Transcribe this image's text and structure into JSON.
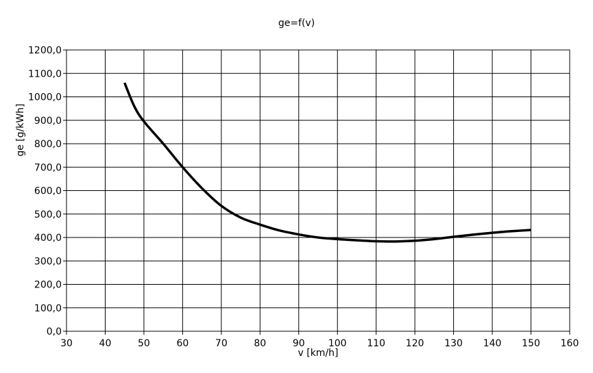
{
  "chart_data": {
    "type": "line",
    "title": "ge=f(v)",
    "xlabel": "v [km/h]",
    "ylabel": "ge [g/kWh]",
    "xlim": [
      30,
      160
    ],
    "ylim": [
      0,
      1200
    ],
    "xticks": [
      30,
      40,
      50,
      60,
      70,
      80,
      90,
      100,
      110,
      120,
      130,
      140,
      150,
      160
    ],
    "yticks": [
      0,
      100,
      200,
      300,
      400,
      500,
      600,
      700,
      800,
      900,
      1000,
      1100,
      1200
    ],
    "xtick_labels": [
      "30",
      "40",
      "50",
      "60",
      "70",
      "80",
      "90",
      "100",
      "110",
      "120",
      "130",
      "140",
      "150",
      "160"
    ],
    "ytick_labels": [
      "0,0",
      "100,0",
      "200,0",
      "300,0",
      "400,0",
      "500,0",
      "600,0",
      "700,0",
      "800,0",
      "900,0",
      "1000,0",
      "1100,0",
      "1200,0"
    ],
    "grid": true,
    "legend": "none",
    "series": [
      {
        "color": "#000000",
        "x": [
          45,
          47.5,
          50,
          55,
          60,
          65,
          70,
          75,
          80,
          85,
          90,
          95,
          100,
          105,
          110,
          115,
          120,
          125,
          130,
          135,
          140,
          145,
          150
        ],
        "y": [
          1060,
          960,
          895,
          800,
          700,
          610,
          535,
          485,
          455,
          430,
          413,
          400,
          393,
          388,
          384,
          383,
          386,
          393,
          403,
          412,
          420,
          427,
          432
        ]
      }
    ]
  }
}
